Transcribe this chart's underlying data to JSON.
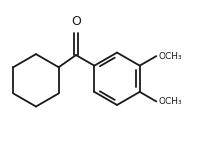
{
  "background_color": "#ffffff",
  "line_color": "#1a1a1a",
  "line_width": 1.3,
  "font_size": 7.5,
  "figsize": [
    2.08,
    1.41
  ],
  "dpi": 100,
  "O_label": "O",
  "OCH3_label": "OCH₃"
}
